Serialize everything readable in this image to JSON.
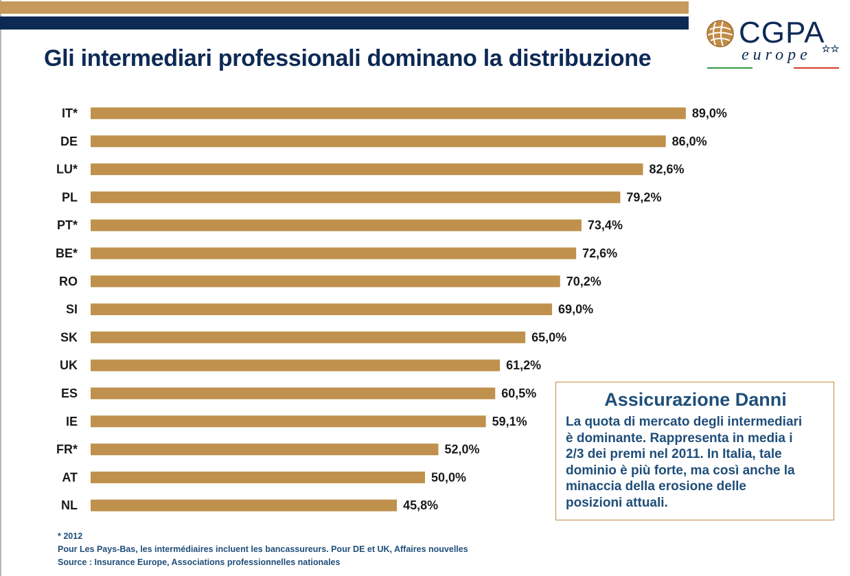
{
  "title": "Gli intermediari professionali dominano la distribuzione",
  "logo": {
    "main_text": "CGPA",
    "sub_text": "europe"
  },
  "colors": {
    "bar": "#c0914d",
    "navy": "#0d2a55",
    "gold_band": "#c59a5a",
    "box_text": "#1f4e79",
    "box_border": "#c28a44"
  },
  "chart_data": {
    "type": "bar",
    "orientation": "horizontal",
    "title": "Gli intermediari professionali dominano la distribuzione",
    "xlabel": "",
    "ylabel": "",
    "xlim": [
      0,
      100
    ],
    "grid": false,
    "categories": [
      "IT*",
      "DE",
      "LU*",
      "PL",
      "PT*",
      "BE*",
      "RO",
      "SI",
      "SK",
      "UK",
      "ES",
      "IE",
      "FR*",
      "AT",
      "NL"
    ],
    "values": [
      89.0,
      86.0,
      82.6,
      79.2,
      73.4,
      72.6,
      70.2,
      69.0,
      65.0,
      61.2,
      60.5,
      59.1,
      52.0,
      50.0,
      45.8
    ],
    "value_labels": [
      "89,0%",
      "86,0%",
      "82,6%",
      "79,2%",
      "73,4%",
      "72,6%",
      "70,2%",
      "69,0%",
      "65,0%",
      "61,2%",
      "60,5%",
      "59,1%",
      "52,0%",
      "50,0%",
      "45,8%"
    ]
  },
  "infobox": {
    "title": "Assicurazione Danni",
    "lines": [
      "La quota di mercato degli intermediari",
      "è dominante. Rappresenta in media i",
      "2/3 dei premi nel 2011. In Italia, tale",
      "dominio è più forte, ma così anche la",
      "minaccia della erosione delle",
      "posizioni attuali."
    ]
  },
  "footnotes": {
    "line1": "* 2012",
    "line2": "Pour Les Pays-Bas, les intermédiaires incluent les bancassureurs. Pour DE et UK, Affaires nouvelles",
    "line3": "Source : Insurance Europe, Associations professionnelles nationales"
  }
}
